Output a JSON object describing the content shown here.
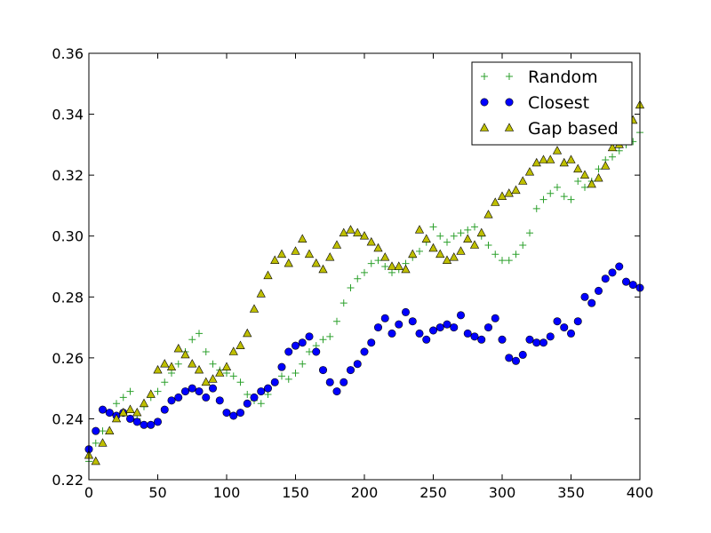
{
  "chart_data": {
    "type": "scatter",
    "title": "",
    "xlabel": "",
    "ylabel": "",
    "xlim": [
      0,
      400
    ],
    "ylim": [
      0.22,
      0.36
    ],
    "xticks": [
      0,
      50,
      100,
      150,
      200,
      250,
      300,
      350,
      400
    ],
    "yticks": [
      0.22,
      0.24,
      0.26,
      0.28,
      0.3,
      0.32,
      0.34,
      0.36
    ],
    "xtick_labels": [
      "0",
      "50",
      "100",
      "150",
      "200",
      "250",
      "300",
      "350",
      "400"
    ],
    "ytick_labels": [
      "0.22",
      "0.24",
      "0.26",
      "0.28",
      "0.30",
      "0.32",
      "0.34",
      "0.36"
    ],
    "grid": false,
    "legend_position": "top-right",
    "series": [
      {
        "name": "Random",
        "marker": "plus",
        "color": "#2ca02c",
        "points": [
          [
            0,
            0.226
          ],
          [
            5,
            0.232
          ],
          [
            10,
            0.236
          ],
          [
            15,
            0.242
          ],
          [
            20,
            0.245
          ],
          [
            25,
            0.247
          ],
          [
            30,
            0.249
          ],
          [
            35,
            0.24
          ],
          [
            40,
            0.244
          ],
          [
            45,
            0.247
          ],
          [
            50,
            0.249
          ],
          [
            55,
            0.252
          ],
          [
            60,
            0.255
          ],
          [
            65,
            0.258
          ],
          [
            70,
            0.262
          ],
          [
            75,
            0.266
          ],
          [
            80,
            0.268
          ],
          [
            85,
            0.262
          ],
          [
            90,
            0.258
          ],
          [
            95,
            0.256
          ],
          [
            100,
            0.255
          ],
          [
            105,
            0.254
          ],
          [
            110,
            0.252
          ],
          [
            115,
            0.248
          ],
          [
            120,
            0.246
          ],
          [
            125,
            0.245
          ],
          [
            130,
            0.248
          ],
          [
            135,
            0.252
          ],
          [
            140,
            0.254
          ],
          [
            145,
            0.253
          ],
          [
            150,
            0.255
          ],
          [
            155,
            0.258
          ],
          [
            160,
            0.262
          ],
          [
            165,
            0.264
          ],
          [
            170,
            0.266
          ],
          [
            175,
            0.267
          ],
          [
            180,
            0.272
          ],
          [
            185,
            0.278
          ],
          [
            190,
            0.283
          ],
          [
            195,
            0.286
          ],
          [
            200,
            0.288
          ],
          [
            205,
            0.291
          ],
          [
            210,
            0.292
          ],
          [
            215,
            0.29
          ],
          [
            220,
            0.288
          ],
          [
            225,
            0.289
          ],
          [
            230,
            0.291
          ],
          [
            235,
            0.293
          ],
          [
            240,
            0.295
          ],
          [
            245,
            0.298
          ],
          [
            250,
            0.303
          ],
          [
            255,
            0.3
          ],
          [
            260,
            0.298
          ],
          [
            265,
            0.3
          ],
          [
            270,
            0.301
          ],
          [
            275,
            0.302
          ],
          [
            280,
            0.303
          ],
          [
            285,
            0.3
          ],
          [
            290,
            0.297
          ],
          [
            295,
            0.294
          ],
          [
            300,
            0.292
          ],
          [
            305,
            0.292
          ],
          [
            310,
            0.294
          ],
          [
            315,
            0.297
          ],
          [
            320,
            0.301
          ],
          [
            325,
            0.309
          ],
          [
            330,
            0.312
          ],
          [
            335,
            0.314
          ],
          [
            340,
            0.316
          ],
          [
            345,
            0.313
          ],
          [
            350,
            0.312
          ],
          [
            355,
            0.318
          ],
          [
            360,
            0.316
          ],
          [
            365,
            0.318
          ],
          [
            370,
            0.322
          ],
          [
            375,
            0.325
          ],
          [
            380,
            0.326
          ],
          [
            385,
            0.328
          ],
          [
            390,
            0.33
          ],
          [
            395,
            0.331
          ],
          [
            400,
            0.334
          ]
        ]
      },
      {
        "name": "Closest",
        "marker": "circle",
        "color": "#0000ff",
        "points": [
          [
            0,
            0.23
          ],
          [
            5,
            0.236
          ],
          [
            10,
            0.243
          ],
          [
            15,
            0.242
          ],
          [
            20,
            0.241
          ],
          [
            25,
            0.242
          ],
          [
            30,
            0.24
          ],
          [
            35,
            0.239
          ],
          [
            40,
            0.238
          ],
          [
            45,
            0.238
          ],
          [
            50,
            0.239
          ],
          [
            55,
            0.243
          ],
          [
            60,
            0.246
          ],
          [
            65,
            0.247
          ],
          [
            70,
            0.249
          ],
          [
            75,
            0.25
          ],
          [
            80,
            0.249
          ],
          [
            85,
            0.247
          ],
          [
            90,
            0.25
          ],
          [
            95,
            0.246
          ],
          [
            100,
            0.242
          ],
          [
            105,
            0.241
          ],
          [
            110,
            0.242
          ],
          [
            115,
            0.245
          ],
          [
            120,
            0.247
          ],
          [
            125,
            0.249
          ],
          [
            130,
            0.25
          ],
          [
            135,
            0.252
          ],
          [
            140,
            0.257
          ],
          [
            145,
            0.262
          ],
          [
            150,
            0.264
          ],
          [
            155,
            0.265
          ],
          [
            160,
            0.267
          ],
          [
            165,
            0.262
          ],
          [
            170,
            0.256
          ],
          [
            175,
            0.252
          ],
          [
            180,
            0.249
          ],
          [
            185,
            0.252
          ],
          [
            190,
            0.256
          ],
          [
            195,
            0.258
          ],
          [
            200,
            0.262
          ],
          [
            205,
            0.265
          ],
          [
            210,
            0.27
          ],
          [
            215,
            0.273
          ],
          [
            220,
            0.268
          ],
          [
            225,
            0.271
          ],
          [
            230,
            0.275
          ],
          [
            235,
            0.272
          ],
          [
            240,
            0.268
          ],
          [
            245,
            0.266
          ],
          [
            250,
            0.269
          ],
          [
            255,
            0.27
          ],
          [
            260,
            0.271
          ],
          [
            265,
            0.27
          ],
          [
            270,
            0.274
          ],
          [
            275,
            0.268
          ],
          [
            280,
            0.267
          ],
          [
            285,
            0.266
          ],
          [
            290,
            0.27
          ],
          [
            295,
            0.273
          ],
          [
            300,
            0.266
          ],
          [
            305,
            0.26
          ],
          [
            310,
            0.259
          ],
          [
            315,
            0.261
          ],
          [
            320,
            0.266
          ],
          [
            325,
            0.265
          ],
          [
            330,
            0.265
          ],
          [
            335,
            0.267
          ],
          [
            340,
            0.272
          ],
          [
            345,
            0.27
          ],
          [
            350,
            0.268
          ],
          [
            355,
            0.272
          ],
          [
            360,
            0.28
          ],
          [
            365,
            0.278
          ],
          [
            370,
            0.282
          ],
          [
            375,
            0.286
          ],
          [
            380,
            0.288
          ],
          [
            385,
            0.29
          ],
          [
            390,
            0.285
          ],
          [
            395,
            0.284
          ],
          [
            400,
            0.283
          ]
        ]
      },
      {
        "name": "Gap based",
        "marker": "triangle",
        "color": "#bfbf00",
        "points": [
          [
            0,
            0.228
          ],
          [
            5,
            0.226
          ],
          [
            10,
            0.232
          ],
          [
            15,
            0.236
          ],
          [
            20,
            0.24
          ],
          [
            25,
            0.242
          ],
          [
            30,
            0.243
          ],
          [
            35,
            0.242
          ],
          [
            40,
            0.245
          ],
          [
            45,
            0.248
          ],
          [
            50,
            0.256
          ],
          [
            55,
            0.258
          ],
          [
            60,
            0.257
          ],
          [
            65,
            0.263
          ],
          [
            70,
            0.261
          ],
          [
            75,
            0.258
          ],
          [
            80,
            0.256
          ],
          [
            85,
            0.252
          ],
          [
            90,
            0.253
          ],
          [
            95,
            0.255
          ],
          [
            100,
            0.257
          ],
          [
            105,
            0.262
          ],
          [
            110,
            0.264
          ],
          [
            115,
            0.268
          ],
          [
            120,
            0.276
          ],
          [
            125,
            0.281
          ],
          [
            130,
            0.287
          ],
          [
            135,
            0.292
          ],
          [
            140,
            0.294
          ],
          [
            145,
            0.291
          ],
          [
            150,
            0.295
          ],
          [
            155,
            0.299
          ],
          [
            160,
            0.294
          ],
          [
            165,
            0.291
          ],
          [
            170,
            0.289
          ],
          [
            175,
            0.293
          ],
          [
            180,
            0.297
          ],
          [
            185,
            0.301
          ],
          [
            190,
            0.302
          ],
          [
            195,
            0.301
          ],
          [
            200,
            0.3
          ],
          [
            205,
            0.298
          ],
          [
            210,
            0.296
          ],
          [
            215,
            0.293
          ],
          [
            220,
            0.29
          ],
          [
            225,
            0.29
          ],
          [
            230,
            0.289
          ],
          [
            235,
            0.294
          ],
          [
            240,
            0.302
          ],
          [
            245,
            0.299
          ],
          [
            250,
            0.296
          ],
          [
            255,
            0.294
          ],
          [
            260,
            0.292
          ],
          [
            265,
            0.293
          ],
          [
            270,
            0.295
          ],
          [
            275,
            0.299
          ],
          [
            280,
            0.297
          ],
          [
            285,
            0.301
          ],
          [
            290,
            0.307
          ],
          [
            295,
            0.311
          ],
          [
            300,
            0.313
          ],
          [
            305,
            0.314
          ],
          [
            310,
            0.315
          ],
          [
            315,
            0.318
          ],
          [
            320,
            0.321
          ],
          [
            325,
            0.324
          ],
          [
            330,
            0.325
          ],
          [
            335,
            0.325
          ],
          [
            340,
            0.328
          ],
          [
            345,
            0.324
          ],
          [
            350,
            0.325
          ],
          [
            355,
            0.322
          ],
          [
            360,
            0.32
          ],
          [
            365,
            0.317
          ],
          [
            370,
            0.319
          ],
          [
            375,
            0.323
          ],
          [
            380,
            0.329
          ],
          [
            385,
            0.33
          ],
          [
            390,
            0.333
          ],
          [
            395,
            0.338
          ],
          [
            400,
            0.343
          ]
        ]
      }
    ]
  }
}
